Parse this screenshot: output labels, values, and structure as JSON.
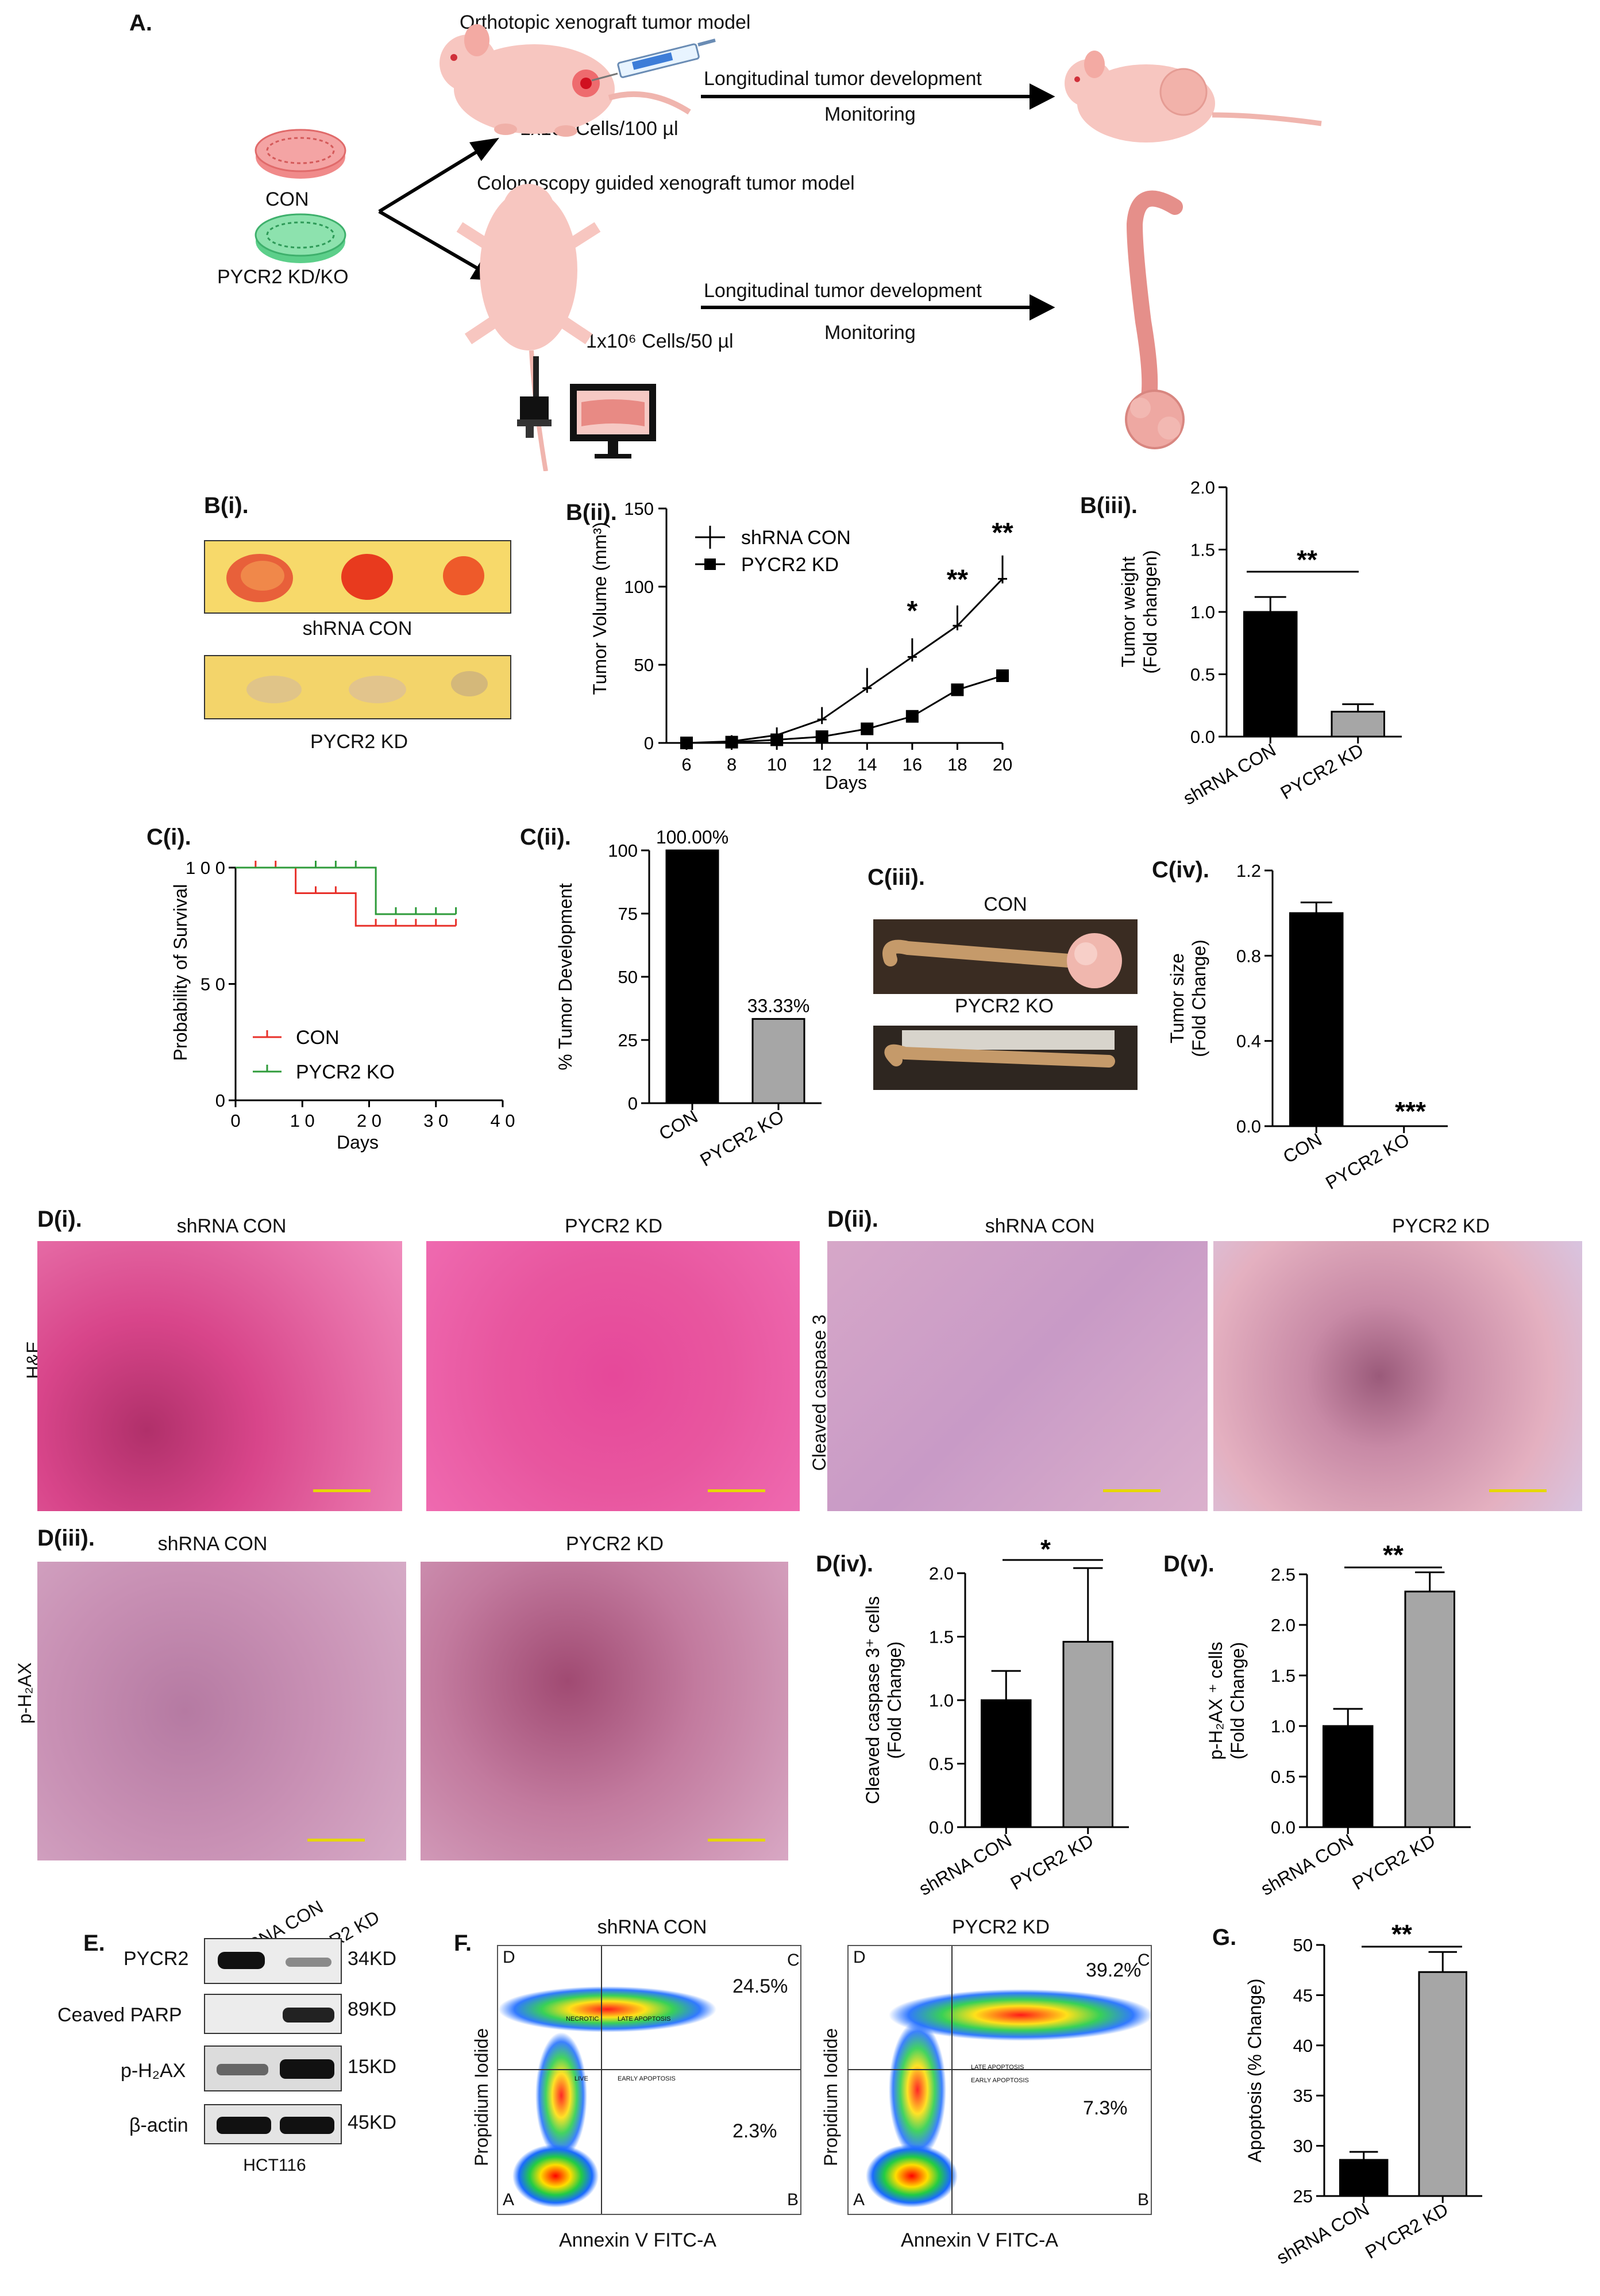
{
  "panel_a": {
    "label": "A.",
    "top_title": "Orthotopic xenograft tumor model",
    "top_cells": "1x10⁶ Cells/100 µl",
    "top_arrow_above": "Longitudinal tumor development",
    "top_arrow_below": "Monitoring",
    "bottom_title": "Colonoscopy guided xenograft tumor model",
    "bottom_cells": "1x10⁶ Cells/50 µl",
    "bottom_arrow_above": "Longitudinal tumor development",
    "bottom_arrow_below": "Monitoring",
    "dish_con": "CON",
    "dish_kd": "PYCR2 KD/KO",
    "colors": {
      "mouse": "#f7c6c0",
      "dish_con": "#f08a8a",
      "dish_kd": "#5ccf8a",
      "colon": "#e58f8a"
    }
  },
  "panel_b1": {
    "label": "B(i).",
    "top_caption": "shRNA CON",
    "bottom_caption": "PYCR2 KD"
  },
  "panel_b2": {
    "label": "B(ii)."
  },
  "panel_b3": {
    "label": "B(iii).",
    "sig": "**"
  },
  "panel_c1": {
    "label": "C(i)."
  },
  "panel_c2": {
    "label": "C(ii)."
  },
  "panel_c3": {
    "label": "C(iii).",
    "top_caption": "CON",
    "bottom_caption": "PYCR2 KO"
  },
  "panel_c4": {
    "label": "C(iv)."
  },
  "panel_d1": {
    "label": "D(i).",
    "col1": "shRNA CON",
    "col2": "PYCR2 KD",
    "row": "H&E"
  },
  "panel_d2": {
    "label": "D(ii).",
    "col1": "shRNA CON",
    "col2": "PYCR2 KD",
    "row": "Cleaved caspase 3"
  },
  "panel_d3": {
    "label": "D(iii).",
    "col1": "shRNA CON",
    "col2": "PYCR2 KD",
    "row": "p-H₂AX"
  },
  "panel_d4": {
    "label": "D(iv)."
  },
  "panel_d5": {
    "label": "D(v)."
  },
  "panel_e": {
    "label": "E.",
    "lanes": [
      "shRNA CON",
      "PYCR2 KD"
    ],
    "rows": [
      {
        "name": "PYCR2",
        "size": "34KD"
      },
      {
        "name": "Ceaved PARP",
        "size": "89KD"
      },
      {
        "name": "p-H₂AX",
        "size": "15KD"
      },
      {
        "name": "β-actin",
        "size": "45KD"
      }
    ],
    "cell_line": "HCT116"
  },
  "panel_f": {
    "label": "F.",
    "plots": [
      {
        "title": "shRNA CON",
        "upper_right": "24.5%",
        "lower_right": "2.3%"
      },
      {
        "title": "PYCR2 KD",
        "upper_right": "39.2%",
        "lower_right": "7.3%"
      }
    ],
    "quadrants": {
      "ul": "D",
      "ur": "C",
      "ll": "A",
      "lr": "B"
    },
    "xlabel": "Annexin V FITC-A",
    "ylabel": "Propidium Iodide",
    "gate_labels": {
      "necrotic": "NECROTIC",
      "late": "LATE APOPTOSIS",
      "live": "LIVE",
      "early": "EARLY APOPTOSIS"
    }
  },
  "panel_g": {
    "label": "G."
  },
  "chart_data": [
    {
      "id": "b2",
      "type": "line",
      "x": [
        6,
        8,
        10,
        12,
        14,
        16,
        18,
        20
      ],
      "series": [
        {
          "name": "shRNA CON",
          "values": [
            0,
            1,
            5,
            15,
            35,
            55,
            75,
            105
          ],
          "errors": [
            0,
            1,
            2,
            5,
            10,
            9,
            10,
            12
          ]
        },
        {
          "name": "PYCR2 KD",
          "values": [
            0,
            0.5,
            2,
            4,
            9,
            17,
            34,
            43
          ],
          "errors": [
            0,
            0.5,
            1,
            1,
            1,
            1,
            1,
            1
          ]
        }
      ],
      "xlabel": "Days",
      "ylabel": "Tumor Volume (mm³)",
      "ylim": [
        0,
        150
      ],
      "xticks": [
        "6",
        "8",
        "10",
        "12",
        "14",
        "16",
        "18",
        "20"
      ],
      "yticks": [
        "0",
        "50",
        "100",
        "150"
      ],
      "sig": [
        {
          "x": 16,
          "text": "*"
        },
        {
          "x": 18,
          "text": "**"
        },
        {
          "x": 20,
          "text": "**"
        }
      ],
      "legend": "top-left"
    },
    {
      "id": "b3",
      "type": "bar",
      "categories": [
        "shRNA CON",
        "PYCR2 KD"
      ],
      "values": [
        1.0,
        0.2
      ],
      "errors": [
        0.12,
        0.06
      ],
      "colors": [
        "#000000",
        "#a6a6a6"
      ],
      "ylabel": "Tumor weight (Fold changen)",
      "ylim": [
        0,
        2.0
      ],
      "yticks": [
        "0.0",
        "0.5",
        "1.0",
        "1.5",
        "2.0"
      ]
    },
    {
      "id": "c1",
      "type": "line",
      "series": [
        {
          "name": "CON",
          "color": "#e8302a",
          "steps": [
            [
              0,
              100
            ],
            [
              9,
              100
            ],
            [
              9,
              89
            ],
            [
              18,
              89
            ],
            [
              18,
              75
            ],
            [
              33,
              75
            ]
          ],
          "censor": [
            3,
            6,
            12,
            15,
            21,
            24,
            27,
            30,
            33
          ]
        },
        {
          "name": "PYCR2 KO",
          "color": "#2e9b3a",
          "steps": [
            [
              0,
              100
            ],
            [
              21,
              100
            ],
            [
              21,
              80
            ],
            [
              33,
              80
            ]
          ],
          "censor": [
            12,
            15,
            18,
            24,
            27,
            30,
            33
          ]
        }
      ],
      "xlabel": "Days",
      "ylabel": "Probability of Survival",
      "xlim": [
        0,
        40
      ],
      "ylim": [
        0,
        100
      ],
      "xticks": [
        "0",
        "1 0",
        "2 0",
        "3 0",
        "4 0"
      ],
      "yticks": [
        "0",
        "5 0",
        "1 0 0"
      ],
      "legend": "bottom-left"
    },
    {
      "id": "c2",
      "type": "bar",
      "categories": [
        "CON",
        "PYCR2 KO"
      ],
      "values": [
        100,
        33.33
      ],
      "data_labels": [
        "100.00%",
        "33.33%"
      ],
      "colors": [
        "#000000",
        "#a6a6a6"
      ],
      "ylabel": "% Tumor Development",
      "ylim": [
        0,
        100
      ],
      "yticks": [
        "0",
        "25",
        "50",
        "75",
        "100"
      ]
    },
    {
      "id": "c4",
      "type": "bar",
      "categories": [
        "CON",
        "PYCR2 KO"
      ],
      "values": [
        1.0,
        0.0
      ],
      "errors": [
        0.05,
        0
      ],
      "colors": [
        "#000000",
        "#a6a6a6"
      ],
      "ylabel": "Tumor size (Fold Change)",
      "ylim": [
        0,
        1.2
      ],
      "yticks": [
        "0.0",
        "0.4",
        "0.8",
        "1.2"
      ],
      "sig_text": "***"
    },
    {
      "id": "d4",
      "type": "bar",
      "categories": [
        "shRNA CON",
        "PYCR2 KD"
      ],
      "values": [
        1.0,
        1.46
      ],
      "errors": [
        0.23,
        0.58
      ],
      "colors": [
        "#000000",
        "#a6a6a6"
      ],
      "ylabel": "Cleaved caspase 3⁺ cells (Fold Change)",
      "ylim": [
        0,
        2.0
      ],
      "yticks": [
        "0.0",
        "0.5",
        "1.0",
        "1.5",
        "2.0"
      ],
      "sig_text": "*"
    },
    {
      "id": "d5",
      "type": "bar",
      "categories": [
        "shRNA CON",
        "PYCR2 KD"
      ],
      "values": [
        1.0,
        2.33
      ],
      "errors": [
        0.17,
        0.19
      ],
      "colors": [
        "#000000",
        "#a6a6a6"
      ],
      "ylabel": "p-H₂AX ⁺ cells (Fold Change)",
      "ylim": [
        0,
        2.5
      ],
      "yticks": [
        "0.0",
        "0.5",
        "1.0",
        "1.5",
        "2.0",
        "2.5"
      ],
      "sig_text": "**"
    },
    {
      "id": "g",
      "type": "bar",
      "categories": [
        "shRNA CON",
        "PYCR2 KD"
      ],
      "values": [
        28.6,
        47.3
      ],
      "errors": [
        0.8,
        2.0
      ],
      "colors": [
        "#000000",
        "#a6a6a6"
      ],
      "ylabel": "Apoptosis (% Change)",
      "ylim": [
        25,
        50
      ],
      "yticks": [
        "25",
        "30",
        "35",
        "40",
        "45",
        "50"
      ],
      "sig_text": "**"
    }
  ]
}
